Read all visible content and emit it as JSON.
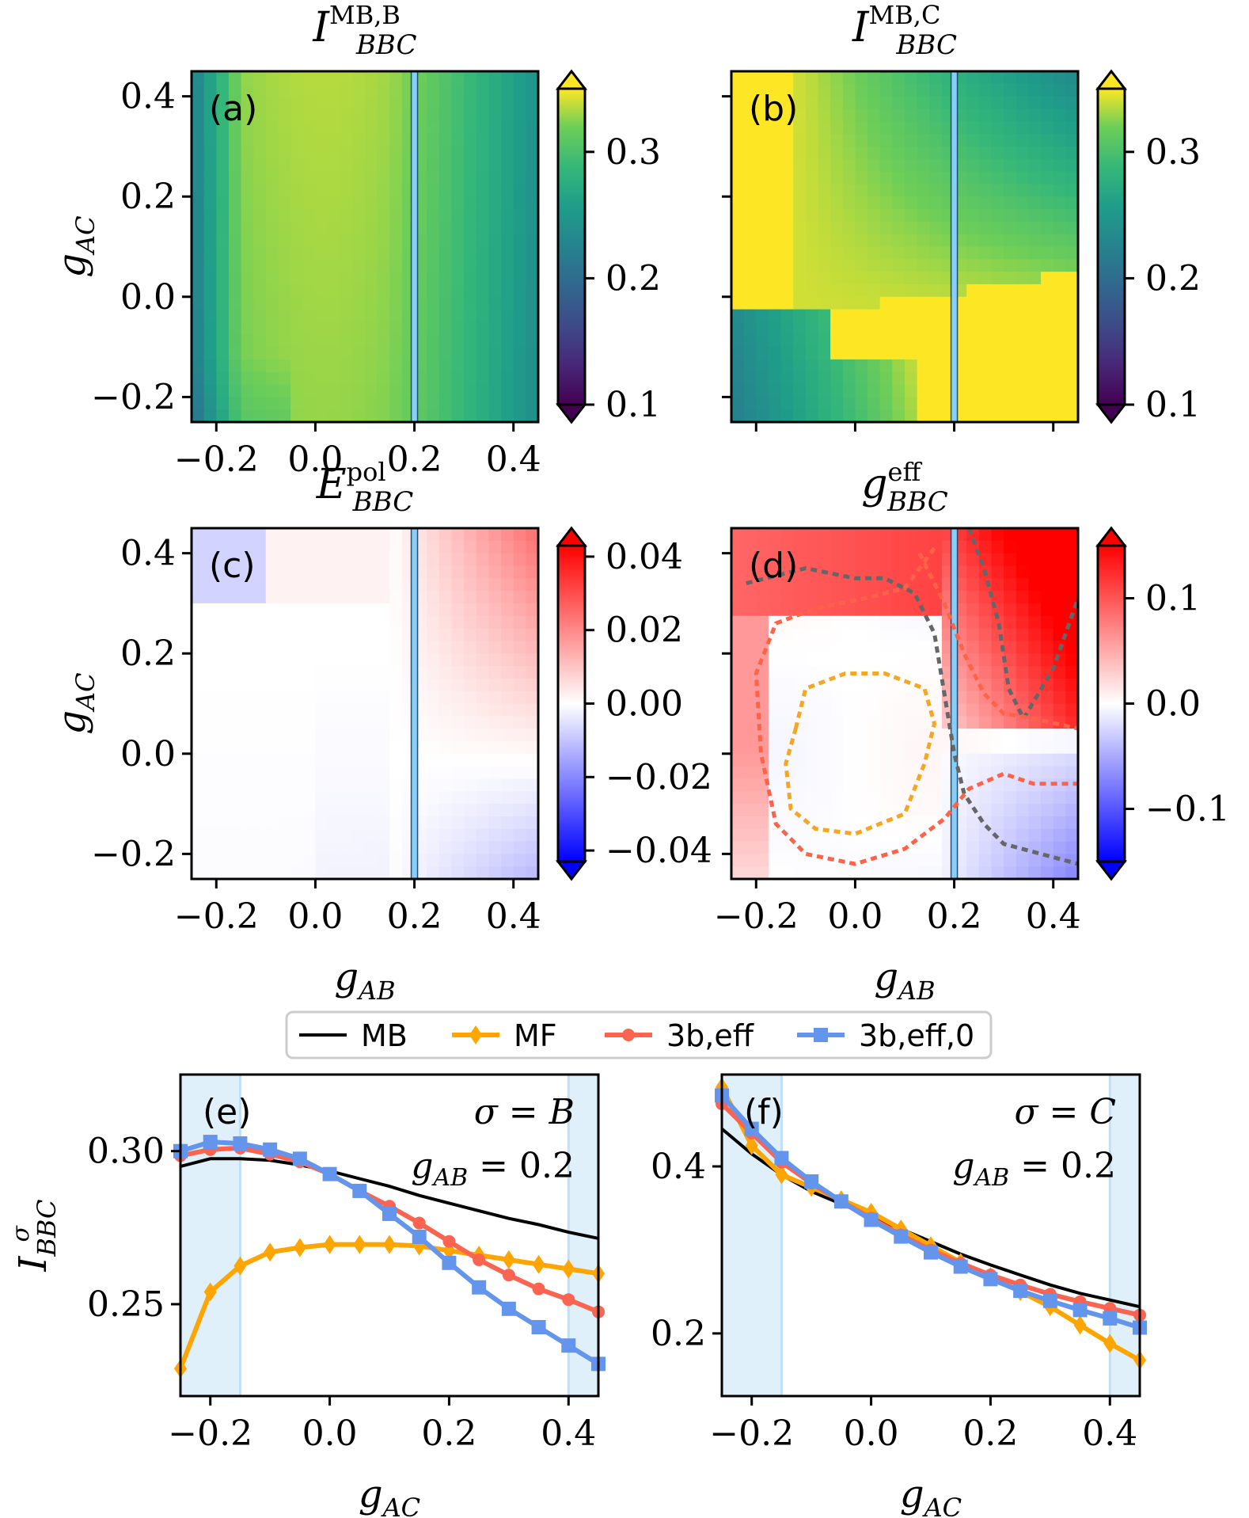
{
  "chart_data": [
    {
      "panel": "(a)",
      "type": "heatmap",
      "title": "I_BBC^{MB,B}",
      "title_main": "I",
      "title_sub": "BBC",
      "title_sup": "MB,B",
      "xlabel": "",
      "ylabel": "g_AC",
      "x_ticks": [
        "−0.2",
        "0.0",
        "0.2",
        "0.4"
      ],
      "x_tick_values": [
        -0.2,
        0.0,
        0.2,
        0.4
      ],
      "y_ticks": [
        "−0.2",
        "0.0",
        "0.2",
        "0.4"
      ],
      "y_tick_values": [
        -0.2,
        0.0,
        0.2,
        0.4
      ],
      "xlim": [
        -0.25,
        0.45
      ],
      "ylim": [
        -0.25,
        0.45
      ],
      "colormap": "viridis",
      "colorbar_range": [
        0.1,
        0.35
      ],
      "colorbar_ticks": [
        "0.1",
        "0.2",
        "0.3"
      ],
      "colorbar_tick_values": [
        0.1,
        0.2,
        0.3
      ],
      "vline_x": 0.2
    },
    {
      "panel": "(b)",
      "type": "heatmap",
      "title": "I_BBC^{MB,C}",
      "title_main": "I",
      "title_sub": "BBC",
      "title_sup": "MB,C",
      "xlabel": "",
      "ylabel": "",
      "x_ticks": [],
      "x_tick_values": [
        -0.2,
        0.0,
        0.2,
        0.4
      ],
      "y_ticks": [],
      "y_tick_values": [
        -0.2,
        0.0,
        0.2,
        0.4
      ],
      "xlim": [
        -0.25,
        0.45
      ],
      "ylim": [
        -0.25,
        0.45
      ],
      "colormap": "viridis",
      "colorbar_range": [
        0.1,
        0.35
      ],
      "colorbar_ticks": [
        "0.1",
        "0.2",
        "0.3"
      ],
      "colorbar_tick_values": [
        0.1,
        0.2,
        0.3
      ],
      "vline_x": 0.2
    },
    {
      "panel": "(c)",
      "type": "heatmap",
      "title": "E_BBC^{pol}",
      "title_main": "E",
      "title_sub": "BBC",
      "title_sup": "pol",
      "xlabel": "g_AB",
      "ylabel": "g_AC",
      "x_ticks": [
        "−0.2",
        "0.0",
        "0.2",
        "0.4"
      ],
      "x_tick_values": [
        -0.2,
        0.0,
        0.2,
        0.4
      ],
      "y_ticks": [
        "−0.2",
        "0.0",
        "0.2",
        "0.4"
      ],
      "y_tick_values": [
        -0.2,
        0.0,
        0.2,
        0.4
      ],
      "xlim": [
        -0.25,
        0.45
      ],
      "ylim": [
        -0.25,
        0.45
      ],
      "colormap": "bwr",
      "colorbar_range": [
        -0.043,
        0.043
      ],
      "colorbar_ticks": [
        "−0.04",
        "−0.02",
        "0.00",
        "0.02",
        "0.04"
      ],
      "colorbar_tick_values": [
        -0.04,
        -0.02,
        0.0,
        0.02,
        0.04
      ],
      "vline_x": 0.2
    },
    {
      "panel": "(d)",
      "type": "heatmap",
      "title": "g_BBC^{eff}",
      "title_main": "g",
      "title_sub": "BBC",
      "title_sup": "eff",
      "xlabel": "g_AB",
      "ylabel": "",
      "x_ticks": [
        "−0.2",
        "0.0",
        "0.2",
        "0.4"
      ],
      "x_tick_values": [
        -0.2,
        0.0,
        0.2,
        0.4
      ],
      "y_ticks": [],
      "y_tick_values": [
        -0.2,
        0.0,
        0.2,
        0.4
      ],
      "xlim": [
        -0.25,
        0.45
      ],
      "ylim": [
        -0.25,
        0.45
      ],
      "colormap": "bwr",
      "colorbar_range": [
        -0.15,
        0.15
      ],
      "colorbar_ticks": [
        "−0.1",
        "0.0",
        "0.1"
      ],
      "colorbar_tick_values": [
        -0.1,
        0.0,
        0.1
      ],
      "vline_x": 0.2,
      "contours": [
        {
          "color": "#666666",
          "style": "dotted",
          "points": [
            [
              -0.22,
              0.34
            ],
            [
              -0.1,
              0.37
            ],
            [
              0.0,
              0.35
            ],
            [
              0.06,
              0.35
            ],
            [
              0.12,
              0.32
            ],
            [
              0.16,
              0.24
            ],
            [
              0.18,
              0.12
            ],
            [
              0.2,
              0.0
            ],
            [
              0.22,
              -0.08
            ],
            [
              0.26,
              -0.14
            ],
            [
              0.3,
              -0.18
            ],
            [
              0.45,
              -0.22
            ]
          ]
        },
        {
          "color": "#666666",
          "style": "dotted",
          "points": [
            [
              0.23,
              0.45
            ],
            [
              0.26,
              0.37
            ],
            [
              0.29,
              0.26
            ],
            [
              0.31,
              0.13
            ],
            [
              0.34,
              0.07
            ],
            [
              0.4,
              0.17
            ],
            [
              0.45,
              0.31
            ]
          ]
        },
        {
          "color": "#ff6347",
          "style": "dotted",
          "points": [
            [
              0.16,
              0.41
            ],
            [
              0.1,
              0.33
            ],
            [
              0.02,
              0.31
            ],
            [
              -0.08,
              0.29
            ],
            [
              -0.16,
              0.26
            ],
            [
              -0.2,
              0.16
            ],
            [
              -0.19,
              0.0
            ],
            [
              -0.16,
              -0.14
            ],
            [
              -0.1,
              -0.2
            ],
            [
              0.0,
              -0.22
            ],
            [
              0.1,
              -0.19
            ],
            [
              0.18,
              -0.13
            ],
            [
              0.23,
              -0.07
            ],
            [
              0.3,
              -0.04
            ],
            [
              0.36,
              -0.06
            ],
            [
              0.45,
              -0.06
            ]
          ]
        },
        {
          "color": "#ff6347",
          "style": "dotted",
          "points": [
            [
              0.13,
              0.4
            ],
            [
              0.18,
              0.3
            ],
            [
              0.22,
              0.2
            ],
            [
              0.26,
              0.12
            ],
            [
              0.3,
              0.08
            ],
            [
              0.36,
              0.07
            ],
            [
              0.45,
              0.05
            ]
          ]
        },
        {
          "color": "#f5a623",
          "style": "dotted",
          "points": [
            [
              -0.12,
              0.05
            ],
            [
              -0.1,
              0.13
            ],
            [
              -0.02,
              0.16
            ],
            [
              0.06,
              0.16
            ],
            [
              0.14,
              0.13
            ],
            [
              0.16,
              0.06
            ],
            [
              0.14,
              -0.02
            ],
            [
              0.1,
              -0.12
            ],
            [
              0.0,
              -0.16
            ],
            [
              -0.08,
              -0.15
            ],
            [
              -0.13,
              -0.11
            ],
            [
              -0.14,
              -0.02
            ],
            [
              -0.12,
              0.05
            ]
          ]
        }
      ]
    },
    {
      "panel": "(e)",
      "type": "line",
      "annotation_sigma": "σ = B",
      "annotation_gab": "g_AB = 0.2",
      "xlabel": "g_AC",
      "ylabel": "I_BBC^σ",
      "xlim": [
        -0.25,
        0.45
      ],
      "ylim": [
        0.22,
        0.325
      ],
      "x_ticks": [
        "−0.2",
        "0.0",
        "0.2",
        "0.4"
      ],
      "x_tick_values": [
        -0.2,
        0.0,
        0.2,
        0.4
      ],
      "y_ticks": [
        "0.25",
        "0.30"
      ],
      "y_tick_values": [
        0.25,
        0.3
      ],
      "shaded_regions": [
        [
          -0.25,
          -0.15
        ],
        [
          0.4,
          0.45
        ]
      ],
      "x": [
        -0.25,
        -0.2,
        -0.15,
        -0.1,
        -0.05,
        0.0,
        0.05,
        0.1,
        0.15,
        0.2,
        0.25,
        0.3,
        0.35,
        0.4,
        0.45
      ],
      "series": [
        {
          "name": "MB",
          "color": "#000000",
          "marker": "none",
          "values": [
            0.295,
            0.2975,
            0.2975,
            0.297,
            0.2955,
            0.2935,
            0.291,
            0.2885,
            0.2855,
            0.283,
            0.2805,
            0.278,
            0.276,
            0.2735,
            0.2715
          ]
        },
        {
          "name": "MF",
          "color": "#ffa500",
          "marker": "diamond",
          "values": [
            0.229,
            0.254,
            0.2625,
            0.267,
            0.2685,
            0.2695,
            0.2695,
            0.2695,
            0.269,
            0.2675,
            0.266,
            0.2645,
            0.263,
            0.2615,
            0.26
          ]
        },
        {
          "name": "3b,eff",
          "color": "#fa6450",
          "marker": "circle",
          "values": [
            0.2985,
            0.3005,
            0.301,
            0.299,
            0.2965,
            0.2925,
            0.287,
            0.282,
            0.2765,
            0.2705,
            0.2645,
            0.2595,
            0.255,
            0.2515,
            0.2475
          ]
        },
        {
          "name": "3b,eff,0",
          "color": "#6495ed",
          "marker": "square",
          "values": [
            0.3,
            0.303,
            0.3025,
            0.3005,
            0.2975,
            0.2925,
            0.287,
            0.2795,
            0.272,
            0.2635,
            0.2555,
            0.2485,
            0.2425,
            0.2365,
            0.2305
          ]
        }
      ]
    },
    {
      "panel": "(f)",
      "type": "line",
      "annotation_sigma": "σ = C",
      "annotation_gab": "g_AB = 0.2",
      "xlabel": "g_AC",
      "ylabel": "",
      "xlim": [
        -0.25,
        0.45
      ],
      "ylim": [
        0.125,
        0.51
      ],
      "x_ticks": [
        "−0.2",
        "0.0",
        "0.2",
        "0.4"
      ],
      "x_tick_values": [
        -0.2,
        0.0,
        0.2,
        0.4
      ],
      "y_ticks": [
        "0.2",
        "0.4"
      ],
      "y_tick_values": [
        0.2,
        0.4
      ],
      "shaded_regions": [
        [
          -0.25,
          -0.15
        ],
        [
          0.4,
          0.45
        ]
      ],
      "x": [
        -0.25,
        -0.2,
        -0.15,
        -0.1,
        -0.05,
        0.0,
        0.05,
        0.1,
        0.15,
        0.2,
        0.25,
        0.3,
        0.35,
        0.4,
        0.45
      ],
      "series": [
        {
          "name": "MB",
          "color": "#000000",
          "marker": "none",
          "values": [
            0.445,
            0.415,
            0.39,
            0.37,
            0.355,
            0.34,
            0.325,
            0.31,
            0.295,
            0.282,
            0.27,
            0.258,
            0.248,
            0.24,
            0.232
          ]
        },
        {
          "name": "MF",
          "color": "#ffa500",
          "marker": "diamond",
          "values": [
            0.495,
            0.425,
            0.39,
            0.375,
            0.36,
            0.345,
            0.325,
            0.305,
            0.285,
            0.268,
            0.25,
            0.232,
            0.21,
            0.188,
            0.168
          ]
        },
        {
          "name": "3b,eff",
          "color": "#fa6450",
          "marker": "circle",
          "values": [
            0.475,
            0.44,
            0.405,
            0.38,
            0.358,
            0.338,
            0.318,
            0.3,
            0.284,
            0.27,
            0.258,
            0.247,
            0.238,
            0.23,
            0.222
          ]
        },
        {
          "name": "3b,eff,0",
          "color": "#6495ed",
          "marker": "square",
          "values": [
            0.485,
            0.445,
            0.41,
            0.382,
            0.358,
            0.336,
            0.316,
            0.297,
            0.28,
            0.265,
            0.251,
            0.239,
            0.228,
            0.218,
            0.207
          ]
        }
      ]
    }
  ],
  "legend": [
    {
      "name": "MB",
      "color": "#000000",
      "marker": "none"
    },
    {
      "name": "MF",
      "color": "#ffa500",
      "marker": "diamond"
    },
    {
      "name": "3b,eff",
      "color": "#fa6450",
      "marker": "circle"
    },
    {
      "name": "3b,eff,0",
      "color": "#6495ed",
      "marker": "square"
    }
  ],
  "vline_color": "#87cefa",
  "shade_color": "#d6ebfa"
}
